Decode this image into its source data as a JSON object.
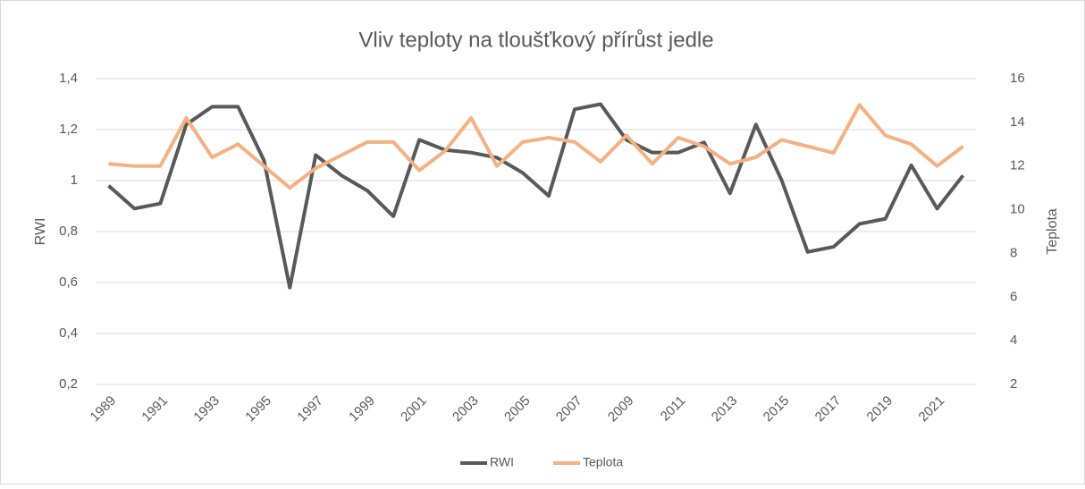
{
  "chart_data": {
    "type": "line",
    "title": "Vliv teploty na tloušťkový přírůst jedle",
    "y_label": "RWI",
    "y2_label": "Teplota",
    "categories": [
      "1989",
      null,
      "1991",
      null,
      "1993",
      null,
      "1995",
      null,
      "1997",
      null,
      "1999",
      null,
      "2001",
      null,
      "2003",
      null,
      "2005",
      null,
      "2007",
      null,
      "2009",
      null,
      "2011",
      null,
      "2013",
      null,
      "2015",
      null,
      "2017",
      null,
      "2019",
      null,
      "2021",
      null
    ],
    "series": [
      {
        "name": "RWI",
        "color": "#595959",
        "axis": "y",
        "values": [
          0.98,
          0.89,
          0.91,
          1.22,
          1.29,
          1.29,
          1.08,
          0.58,
          1.1,
          1.02,
          0.96,
          0.86,
          1.16,
          1.12,
          1.11,
          1.09,
          1.03,
          0.94,
          1.28,
          1.3,
          1.16,
          1.11,
          1.11,
          1.15,
          0.95,
          1.22,
          1.0,
          0.72,
          0.74,
          0.83,
          0.85,
          1.06,
          0.89,
          1.02
        ]
      },
      {
        "name": "Teplota",
        "color": "#f4b183",
        "axis": "y2",
        "values": [
          12.1,
          12.0,
          12.0,
          14.2,
          12.4,
          13.0,
          12.0,
          11.0,
          11.9,
          12.5,
          13.1,
          13.1,
          11.8,
          12.7,
          14.2,
          12.0,
          13.1,
          13.3,
          13.1,
          12.2,
          13.4,
          12.1,
          13.3,
          12.9,
          12.1,
          12.4,
          13.2,
          12.9,
          12.6,
          14.8,
          13.4,
          13.0,
          12.0,
          12.9
        ]
      }
    ],
    "ylim": [
      0.2,
      1.4
    ],
    "yticks": [
      {
        "value": 0.2,
        "label": "0,2"
      },
      {
        "value": 0.4,
        "label": "0,4"
      },
      {
        "value": 0.6,
        "label": "0,6"
      },
      {
        "value": 0.8,
        "label": "0,8"
      },
      1,
      {
        "value": 1.2,
        "label": "1,2"
      },
      {
        "value": 1.4,
        "label": "1,4"
      }
    ],
    "y2lim": [
      2,
      16
    ],
    "y2ticks": [
      2,
      4,
      6,
      8,
      10,
      12,
      14,
      16
    ],
    "grid": true,
    "legend": "bottom"
  }
}
